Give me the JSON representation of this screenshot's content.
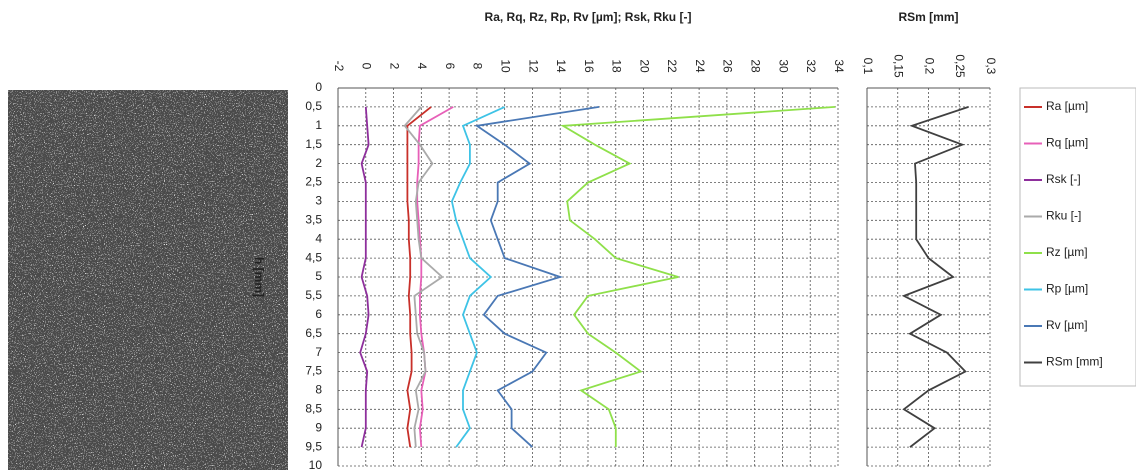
{
  "chart_data": [
    {
      "type": "line",
      "orientation": "vertical",
      "title": "Ra, Rq, Rz, Rp, Rv [µm]; Rsk, Rku [-]",
      "x_label": "h [mm]",
      "x": [
        0.5,
        1,
        1.5,
        2,
        2.5,
        3,
        3.5,
        4,
        4.5,
        5,
        5.5,
        6,
        6.5,
        7,
        7.5,
        8,
        8.5,
        9,
        9.5
      ],
      "xlim": [
        0,
        10
      ],
      "xticks": [
        0,
        {
          "value": 0.5,
          "label": "0,5"
        },
        1,
        {
          "value": 1.5,
          "label": "1,5"
        },
        2,
        {
          "value": 2.5,
          "label": "2,5"
        },
        3,
        {
          "value": 3.5,
          "label": "3,5"
        },
        4,
        {
          "value": 4.5,
          "label": "4,5"
        },
        5,
        {
          "value": 5.5,
          "label": "5,5"
        },
        6,
        {
          "value": 6.5,
          "label": "6,5"
        },
        7,
        {
          "value": 7.5,
          "label": "7,5"
        },
        8,
        {
          "value": 8.5,
          "label": "8,5"
        },
        9,
        {
          "value": 9.5,
          "label": "9,5"
        },
        10
      ],
      "ylim": [
        -2,
        34
      ],
      "yticks": [
        -2,
        0,
        2,
        4,
        6,
        8,
        10,
        12,
        14,
        16,
        18,
        20,
        22,
        24,
        26,
        28,
        30,
        32,
        34
      ],
      "grid": true,
      "series": [
        {
          "name": "Ra [µm]",
          "color": "#c8302a",
          "values": [
            4.7,
            3.0,
            3.0,
            3.0,
            3.0,
            3.0,
            3.1,
            3.1,
            3.2,
            3.2,
            3.1,
            3.2,
            3.2,
            3.3,
            3.3,
            3.0,
            3.2,
            3.0,
            3.2
          ]
        },
        {
          "name": "Rq [µm]",
          "color": "#e760b8",
          "values": [
            6.3,
            3.9,
            3.8,
            3.8,
            3.7,
            3.7,
            3.8,
            3.9,
            4.0,
            4.0,
            3.9,
            3.9,
            4.0,
            4.2,
            4.3,
            4.0,
            4.1,
            3.9,
            4.0
          ]
        },
        {
          "name": "Rsk [-]",
          "color": "#8e2f9c",
          "values": [
            0,
            0.1,
            0.2,
            -0.3,
            0,
            0,
            0,
            0,
            0,
            -0.3,
            0.1,
            0.2,
            0,
            -0.4,
            0.1,
            0,
            0,
            0,
            -0.3
          ]
        },
        {
          "name": "Rku [-]",
          "color": "#aaaaaa",
          "values": [
            4.0,
            2.8,
            3.9,
            4.8,
            3.8,
            3.6,
            3.7,
            3.8,
            4.0,
            5.5,
            3.5,
            3.6,
            3.7,
            4.2,
            4.3,
            3.6,
            3.8,
            3.5,
            3.6
          ]
        },
        {
          "name": "Rz [µm]",
          "color": "#8fe04a",
          "values": [
            33.8,
            14.2,
            16.5,
            19,
            16,
            14.5,
            14.7,
            16.5,
            18,
            22.5,
            16,
            15,
            16,
            18,
            19.8,
            15.5,
            17.5,
            18,
            18
          ]
        },
        {
          "name": "Rp [µm]",
          "color": "#3ec3e6",
          "values": [
            10,
            7,
            7.5,
            7.5,
            6.8,
            6.2,
            6.5,
            7,
            7.5,
            9,
            7.5,
            7,
            7.5,
            8,
            7.5,
            7,
            7,
            7.5,
            6.5
          ]
        },
        {
          "name": "Rv [µm]",
          "color": "#4a78b5",
          "values": [
            16.8,
            8,
            10,
            11.8,
            9.5,
            9.5,
            9,
            9.5,
            10,
            14,
            9.5,
            8.5,
            10,
            13,
            12,
            9.5,
            10.5,
            10.5,
            12
          ]
        }
      ]
    },
    {
      "type": "line",
      "orientation": "vertical",
      "title": "RSm [mm]",
      "ylim": [
        0.1,
        0.3
      ],
      "yticks": [
        {
          "value": 0.1,
          "label": "0,1"
        },
        {
          "value": 0.15,
          "label": "0,15"
        },
        {
          "value": 0.2,
          "label": "0,2"
        },
        {
          "value": 0.25,
          "label": "0,25"
        },
        {
          "value": 0.3,
          "label": "0,3"
        }
      ],
      "grid": true,
      "series": [
        {
          "name": "RSm [mm]",
          "color": "#404040",
          "values": [
            0.265,
            0.173,
            0.255,
            0.178,
            0.18,
            0.18,
            0.18,
            0.18,
            0.2,
            0.24,
            0.16,
            0.22,
            0.17,
            0.23,
            0.26,
            0.2,
            0.16,
            0.21,
            0.17
          ]
        }
      ]
    }
  ]
}
